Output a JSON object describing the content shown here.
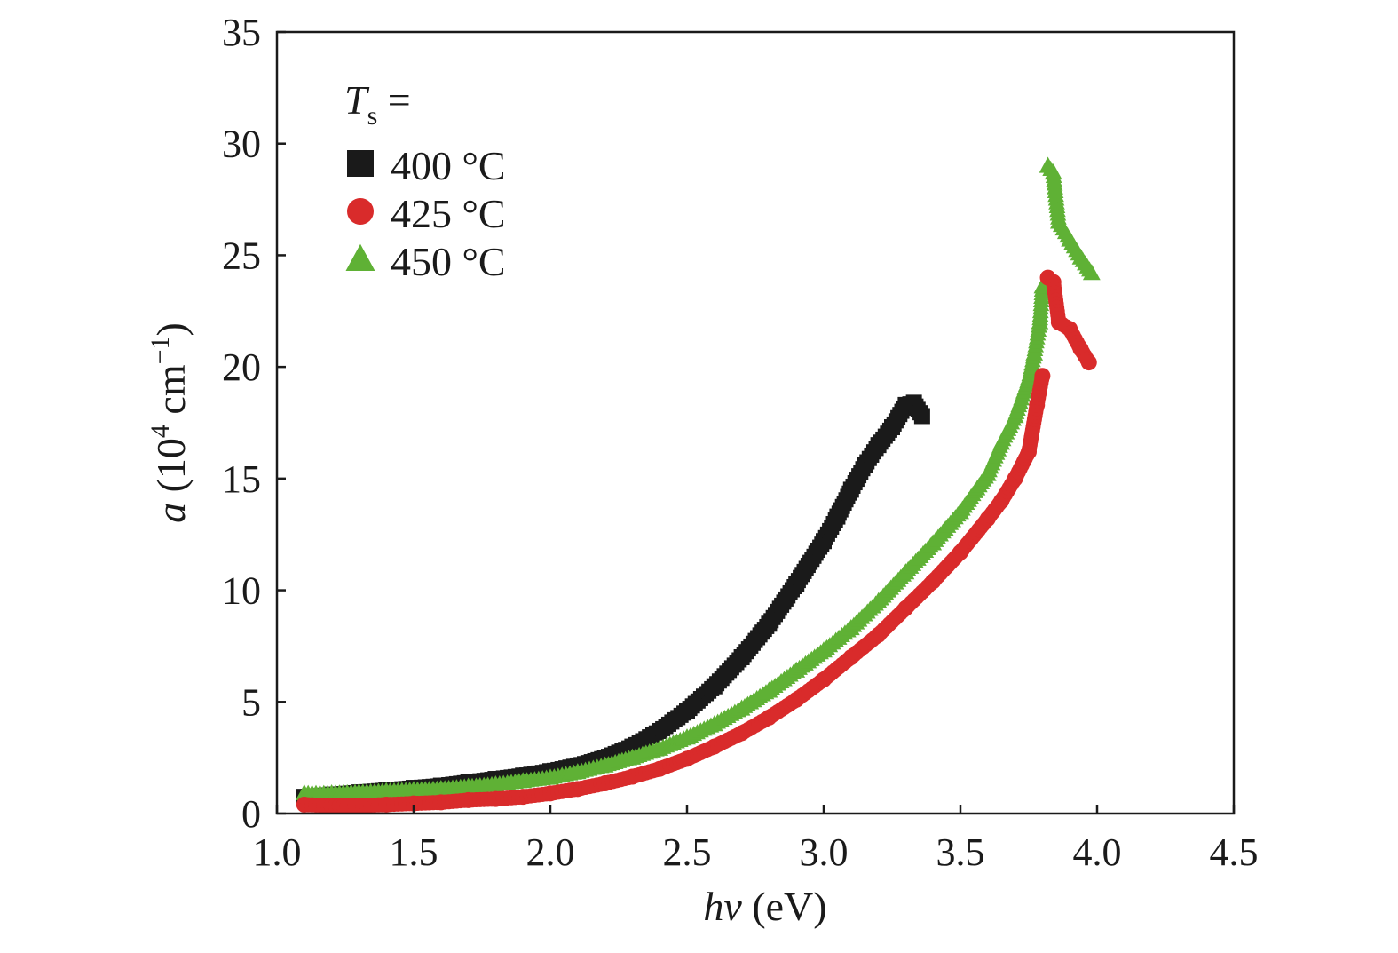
{
  "chart_data": {
    "type": "scatter",
    "xlabel": {
      "italic": "hv",
      "rest": " (eV)"
    },
    "ylabel": {
      "italic": "a",
      "rest_before_sup": " (10",
      "sup1": "4",
      "rest_mid": " cm",
      "sup2": "−1",
      "rest_end": ")"
    },
    "xlim": [
      1.0,
      4.5
    ],
    "ylim": [
      0,
      35
    ],
    "xticks": [
      1.0,
      1.5,
      2.0,
      2.5,
      3.0,
      3.5,
      4.0,
      4.5
    ],
    "xtick_labels": [
      "1.0",
      "1.5",
      "2.0",
      "2.5",
      "3.0",
      "3.5",
      "4.0",
      "4.5"
    ],
    "yticks": [
      0,
      5,
      10,
      15,
      20,
      25,
      30,
      35
    ],
    "ytick_labels": [
      "0",
      "5",
      "10",
      "15",
      "20",
      "25",
      "30",
      "35"
    ],
    "grid": false,
    "legend": {
      "position": "top-left",
      "title_italic": "T",
      "title_sub": "s",
      "title_rest": " ="
    },
    "series": [
      {
        "name": "400 °C",
        "marker": "square",
        "color": "#1a1a1a",
        "points": [
          [
            1.1,
            0.75
          ],
          [
            1.2,
            0.85
          ],
          [
            1.3,
            0.95
          ],
          [
            1.4,
            1.05
          ],
          [
            1.5,
            1.15
          ],
          [
            1.6,
            1.25
          ],
          [
            1.7,
            1.4
          ],
          [
            1.8,
            1.55
          ],
          [
            1.9,
            1.7
          ],
          [
            2.0,
            1.9
          ],
          [
            2.1,
            2.15
          ],
          [
            2.2,
            2.5
          ],
          [
            2.3,
            3.0
          ],
          [
            2.4,
            3.7
          ],
          [
            2.5,
            4.6
          ],
          [
            2.6,
            5.7
          ],
          [
            2.7,
            7.0
          ],
          [
            2.8,
            8.5
          ],
          [
            2.9,
            10.3
          ],
          [
            3.0,
            12.2
          ],
          [
            3.05,
            13.3
          ],
          [
            3.1,
            14.5
          ],
          [
            3.15,
            15.6
          ],
          [
            3.2,
            16.5
          ],
          [
            3.25,
            17.3
          ],
          [
            3.3,
            18.3
          ],
          [
            3.33,
            18.4
          ],
          [
            3.36,
            17.8
          ]
        ]
      },
      {
        "name": "425 °C",
        "marker": "circle",
        "color": "#d92b2b",
        "points": [
          [
            1.1,
            0.4
          ],
          [
            1.2,
            0.35
          ],
          [
            1.3,
            0.35
          ],
          [
            1.4,
            0.4
          ],
          [
            1.5,
            0.45
          ],
          [
            1.6,
            0.5
          ],
          [
            1.7,
            0.6
          ],
          [
            1.8,
            0.65
          ],
          [
            1.9,
            0.75
          ],
          [
            2.0,
            0.9
          ],
          [
            2.1,
            1.1
          ],
          [
            2.2,
            1.35
          ],
          [
            2.3,
            1.65
          ],
          [
            2.4,
            2.0
          ],
          [
            2.5,
            2.45
          ],
          [
            2.6,
            3.0
          ],
          [
            2.7,
            3.6
          ],
          [
            2.8,
            4.3
          ],
          [
            2.9,
            5.1
          ],
          [
            3.0,
            6.0
          ],
          [
            3.1,
            7.0
          ],
          [
            3.2,
            8.0
          ],
          [
            3.3,
            9.2
          ],
          [
            3.4,
            10.4
          ],
          [
            3.5,
            11.7
          ],
          [
            3.6,
            13.2
          ],
          [
            3.65,
            14.0
          ],
          [
            3.7,
            15.0
          ],
          [
            3.75,
            16.2
          ],
          [
            3.78,
            18.3
          ],
          [
            3.8,
            19.6
          ],
          [
            3.82,
            24.0
          ],
          [
            3.84,
            23.8
          ],
          [
            3.86,
            22.0
          ],
          [
            3.9,
            21.7
          ],
          [
            3.94,
            20.8
          ],
          [
            3.97,
            20.2
          ]
        ]
      },
      {
        "name": "450 °C",
        "marker": "triangle",
        "color": "#5fb135",
        "points": [
          [
            1.1,
            0.9
          ],
          [
            1.2,
            0.9
          ],
          [
            1.3,
            0.95
          ],
          [
            1.4,
            1.0
          ],
          [
            1.5,
            1.05
          ],
          [
            1.6,
            1.1
          ],
          [
            1.7,
            1.2
          ],
          [
            1.8,
            1.3
          ],
          [
            1.9,
            1.45
          ],
          [
            2.0,
            1.6
          ],
          [
            2.1,
            1.85
          ],
          [
            2.2,
            2.15
          ],
          [
            2.3,
            2.5
          ],
          [
            2.4,
            2.9
          ],
          [
            2.5,
            3.4
          ],
          [
            2.6,
            4.0
          ],
          [
            2.7,
            4.7
          ],
          [
            2.8,
            5.5
          ],
          [
            2.9,
            6.4
          ],
          [
            3.0,
            7.3
          ],
          [
            3.1,
            8.3
          ],
          [
            3.2,
            9.5
          ],
          [
            3.3,
            10.8
          ],
          [
            3.4,
            12.1
          ],
          [
            3.5,
            13.5
          ],
          [
            3.6,
            15.2
          ],
          [
            3.65,
            16.6
          ],
          [
            3.7,
            17.8
          ],
          [
            3.75,
            19.5
          ],
          [
            3.77,
            20.6
          ],
          [
            3.79,
            22.0
          ],
          [
            3.8,
            23.6
          ],
          [
            3.82,
            29.0
          ],
          [
            3.84,
            28.7
          ],
          [
            3.86,
            26.5
          ],
          [
            3.9,
            25.7
          ],
          [
            3.94,
            24.9
          ],
          [
            3.98,
            24.2
          ]
        ]
      }
    ]
  }
}
